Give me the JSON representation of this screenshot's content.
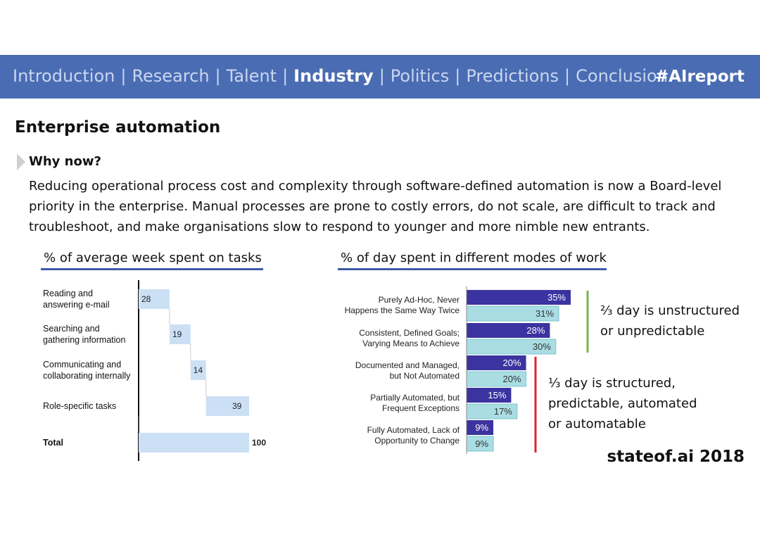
{
  "nav": {
    "items": [
      "Introduction",
      "Research",
      "Talent",
      "Industry",
      "Politics",
      "Predictions",
      "Conclusion"
    ],
    "active": "Industry",
    "separator": "|",
    "hashtag": "#AIreport"
  },
  "title": "Enterprise automation",
  "why": {
    "heading": "Why now?",
    "lines": [
      "Reducing operational process cost and complexity through software-defined automation is now a Board-level",
      "priority in the enterprise. Manual processes are prone to costly errors, do not scale, are difficult to track and",
      "troubleshoot, and make organisations slow to respond to younger and more nimble new entrants."
    ]
  },
  "annotations": {
    "unstructured": [
      "⅔ day is unstructured",
      "or unpredictable"
    ],
    "structured": [
      "⅓ day is structured,",
      "predictable, automated",
      "or automatable"
    ]
  },
  "footer": "stateof.ai 2018",
  "colors": {
    "nav_bg": "#4a6cb3",
    "waterfall_bar": "#cce0f5",
    "bar_dark": "#3b33a0",
    "bar_light": "#a9dde3",
    "bracket_green": "#7ab648",
    "bracket_red": "#d9262a"
  },
  "chart_data": [
    {
      "type": "bar",
      "title": "% of average week spent on tasks",
      "categories": [
        [
          "Reading and",
          "answering e-mail"
        ],
        [
          "Searching and",
          "gathering information"
        ],
        [
          "Communicating and",
          "collaborating internally"
        ],
        [
          "Role-specific tasks"
        ],
        [
          "Total"
        ]
      ],
      "values": [
        28,
        19,
        14,
        39,
        100
      ],
      "waterfall": true,
      "total_index": 4
    },
    {
      "type": "bar",
      "orientation": "horizontal",
      "title": "% of day spent in different modes of work",
      "categories": [
        [
          "Purely Ad-Hoc, Never",
          "Happens the Same Way Twice"
        ],
        [
          "Consistent, Defined Goals;",
          "Varying Means to Achieve"
        ],
        [
          "Documented and Managed,",
          "but Not Automated"
        ],
        [
          "Partially Automated, but",
          "Frequent Exceptions"
        ],
        [
          "Fully Automated, Lack of",
          "Opportunity to Change"
        ]
      ],
      "series": [
        {
          "values": [
            35,
            28,
            20,
            15,
            9
          ]
        },
        {
          "values": [
            31,
            30,
            20,
            17,
            9
          ]
        }
      ],
      "value_suffix": "%"
    }
  ]
}
